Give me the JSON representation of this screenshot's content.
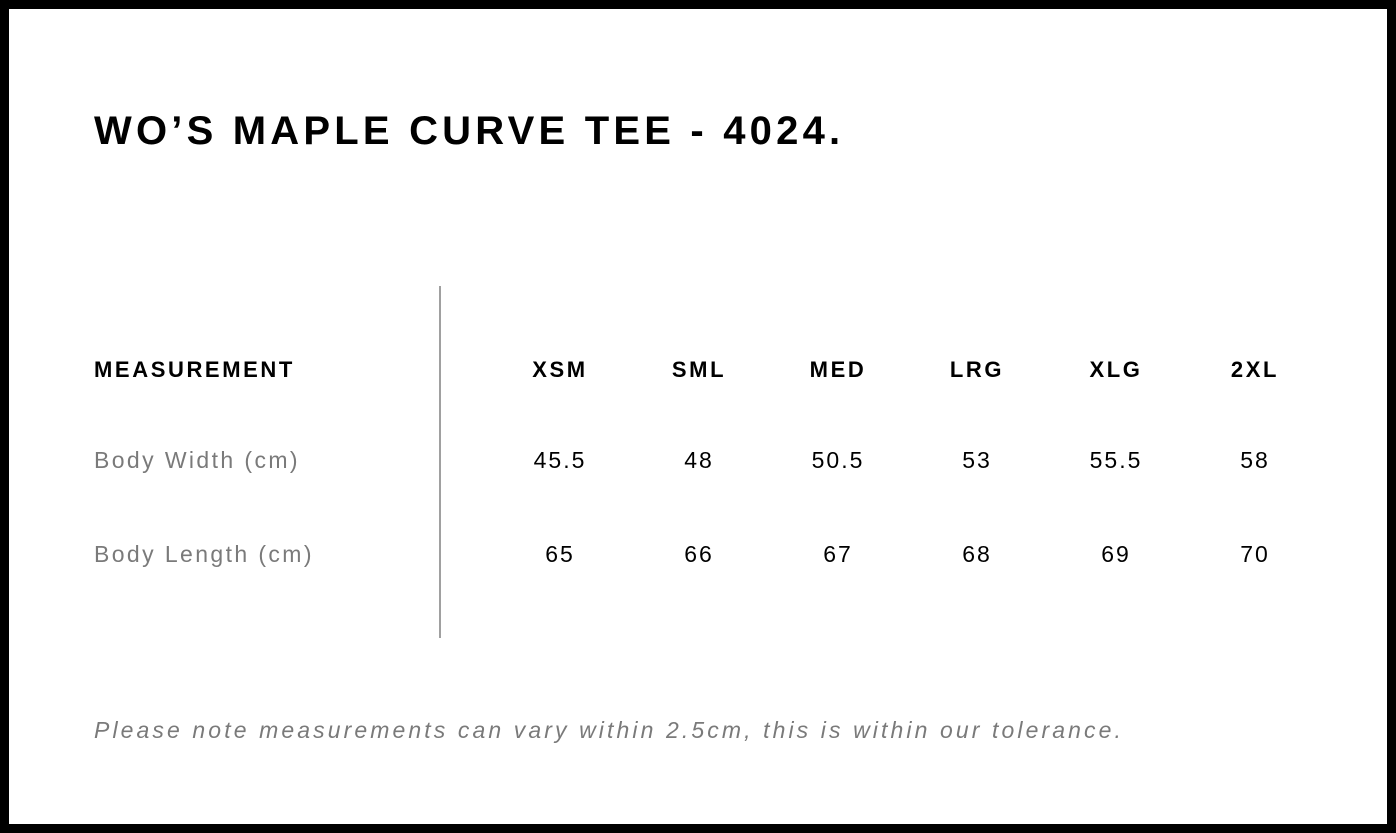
{
  "title": "WO’S MAPLE CURVE TEE - 4024.",
  "table": {
    "header_label": "MEASUREMENT",
    "sizes": [
      "XSM",
      "SML",
      "MED",
      "LRG",
      "XLG",
      "2XL"
    ],
    "rows": [
      {
        "label": "Body Width (cm)",
        "values": [
          "45.5",
          "48",
          "50.5",
          "53",
          "55.5",
          "58"
        ]
      },
      {
        "label": "Body Length (cm)",
        "values": [
          "65",
          "66",
          "67",
          "68",
          "69",
          "70"
        ]
      }
    ]
  },
  "note": "Please note measurements can vary within 2.5cm, this is within our tolerance."
}
